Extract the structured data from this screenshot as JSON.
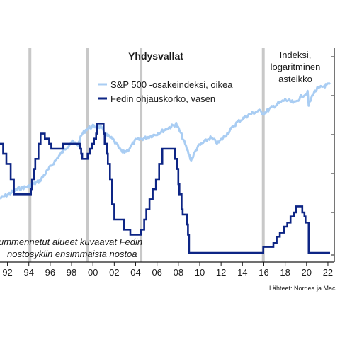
{
  "chart_data": {
    "type": "line",
    "title": "Yhdysvallat",
    "annotation_top_right": [
      "Indeksi,",
      "logaritminen",
      "asteikko"
    ],
    "annotation_bottom": [
      "ummennetut alueet kuvaavat Fedin",
      "nostosyklin ensimmäistä nostoa"
    ],
    "source": "Lähteet: Nordea ja Mac",
    "x_tick_labels": [
      "92",
      "94",
      "96",
      "98",
      "00",
      "02",
      "04",
      "06",
      "08",
      "10",
      "12",
      "14",
      "16",
      "18",
      "20",
      "22"
    ],
    "x_ticks": [
      1992,
      1994,
      1996,
      1998,
      2000,
      2002,
      2004,
      2006,
      2008,
      2010,
      2012,
      2014,
      2016,
      2018,
      2020,
      2022
    ],
    "xlim": [
      1991.3,
      2022.6
    ],
    "grid": false,
    "legend_position": "top-center",
    "shaded_years": [
      1994.1,
      1999.5,
      2004.5,
      2015.95
    ],
    "colors": {
      "sp500": "#a9cdf3",
      "fed": "#0d2585",
      "shade": "#c8c8c8"
    },
    "series": [
      {
        "name": "Fedin ohjauskorko, vasen",
        "axis": "left",
        "style": "step",
        "ylim": [
          0,
          7
        ],
        "points": [
          [
            1991.3,
            5.5
          ],
          [
            1991.6,
            5.0
          ],
          [
            1991.9,
            4.5
          ],
          [
            1992.3,
            3.75
          ],
          [
            1992.6,
            3.0
          ],
          [
            1994.1,
            3.0
          ],
          [
            1994.2,
            3.25
          ],
          [
            1994.3,
            3.75
          ],
          [
            1994.5,
            4.25
          ],
          [
            1994.6,
            4.75
          ],
          [
            1994.9,
            5.5
          ],
          [
            1995.1,
            6.0
          ],
          [
            1995.5,
            5.75
          ],
          [
            1995.9,
            5.5
          ],
          [
            1996.1,
            5.25
          ],
          [
            1997.2,
            5.5
          ],
          [
            1998.8,
            5.25
          ],
          [
            1998.9,
            5.0
          ],
          [
            1999.0,
            4.75
          ],
          [
            1999.5,
            5.0
          ],
          [
            1999.7,
            5.25
          ],
          [
            1999.9,
            5.5
          ],
          [
            2000.1,
            5.75
          ],
          [
            2000.3,
            6.0
          ],
          [
            2000.4,
            6.5
          ],
          [
            2001.0,
            6.0
          ],
          [
            2001.1,
            5.5
          ],
          [
            2001.3,
            5.0
          ],
          [
            2001.4,
            4.5
          ],
          [
            2001.6,
            3.75
          ],
          [
            2001.8,
            2.5
          ],
          [
            2002.0,
            1.75
          ],
          [
            2002.9,
            1.25
          ],
          [
            2003.5,
            1.0
          ],
          [
            2004.5,
            1.25
          ],
          [
            2004.8,
            1.75
          ],
          [
            2005.0,
            2.25
          ],
          [
            2005.3,
            2.75
          ],
          [
            2005.6,
            3.25
          ],
          [
            2005.9,
            3.75
          ],
          [
            2006.2,
            4.5
          ],
          [
            2006.5,
            5.25
          ],
          [
            2007.7,
            4.75
          ],
          [
            2007.9,
            4.25
          ],
          [
            2008.0,
            3.5
          ],
          [
            2008.1,
            3.0
          ],
          [
            2008.3,
            2.25
          ],
          [
            2008.4,
            2.0
          ],
          [
            2008.8,
            1.5
          ],
          [
            2008.9,
            1.0
          ],
          [
            2009.0,
            0.1
          ],
          [
            2015.95,
            0.4
          ],
          [
            2016.9,
            0.6
          ],
          [
            2017.2,
            0.9
          ],
          [
            2017.5,
            1.1
          ],
          [
            2017.9,
            1.4
          ],
          [
            2018.2,
            1.6
          ],
          [
            2018.5,
            1.9
          ],
          [
            2018.8,
            2.1
          ],
          [
            2019.0,
            2.4
          ],
          [
            2019.6,
            2.1
          ],
          [
            2019.8,
            1.9
          ],
          [
            2019.9,
            1.6
          ],
          [
            2020.2,
            0.1
          ],
          [
            2022.2,
            0.1
          ]
        ]
      },
      {
        "name": "S&P 500 -osakeindeksi, oikea",
        "axis": "right",
        "style": "line",
        "scale": "log",
        "ylim": [
          0.5,
          2.5
        ],
        "points": [
          [
            1991.3,
            0.73
          ],
          [
            1992.0,
            0.76
          ],
          [
            1993.0,
            0.81
          ],
          [
            1994.0,
            0.83
          ],
          [
            1995.0,
            0.88
          ],
          [
            1996.0,
            1.02
          ],
          [
            1997.0,
            1.18
          ],
          [
            1998.0,
            1.34
          ],
          [
            1998.6,
            1.3
          ],
          [
            1999.0,
            1.46
          ],
          [
            1999.5,
            1.55
          ],
          [
            2000.0,
            1.58
          ],
          [
            2000.7,
            1.57
          ],
          [
            2001.2,
            1.45
          ],
          [
            2001.9,
            1.37
          ],
          [
            2002.5,
            1.24
          ],
          [
            2002.8,
            1.19
          ],
          [
            2003.3,
            1.23
          ],
          [
            2004.0,
            1.36
          ],
          [
            2005.0,
            1.4
          ],
          [
            2006.0,
            1.46
          ],
          [
            2007.0,
            1.55
          ],
          [
            2007.8,
            1.62
          ],
          [
            2008.3,
            1.44
          ],
          [
            2008.8,
            1.24
          ],
          [
            2009.2,
            1.1
          ],
          [
            2009.8,
            1.27
          ],
          [
            2011.0,
            1.4
          ],
          [
            2011.7,
            1.32
          ],
          [
            2012.5,
            1.45
          ],
          [
            2013.5,
            1.65
          ],
          [
            2014.5,
            1.78
          ],
          [
            2015.5,
            1.87
          ],
          [
            2016.0,
            1.82
          ],
          [
            2017.0,
            1.97
          ],
          [
            2018.0,
            2.1
          ],
          [
            2018.9,
            2.03
          ],
          [
            2019.5,
            2.18
          ],
          [
            2020.1,
            2.27
          ],
          [
            2020.2,
            1.98
          ],
          [
            2020.6,
            2.24
          ],
          [
            2021.0,
            2.36
          ],
          [
            2021.8,
            2.45
          ],
          [
            2022.2,
            2.48
          ]
        ]
      }
    ]
  }
}
